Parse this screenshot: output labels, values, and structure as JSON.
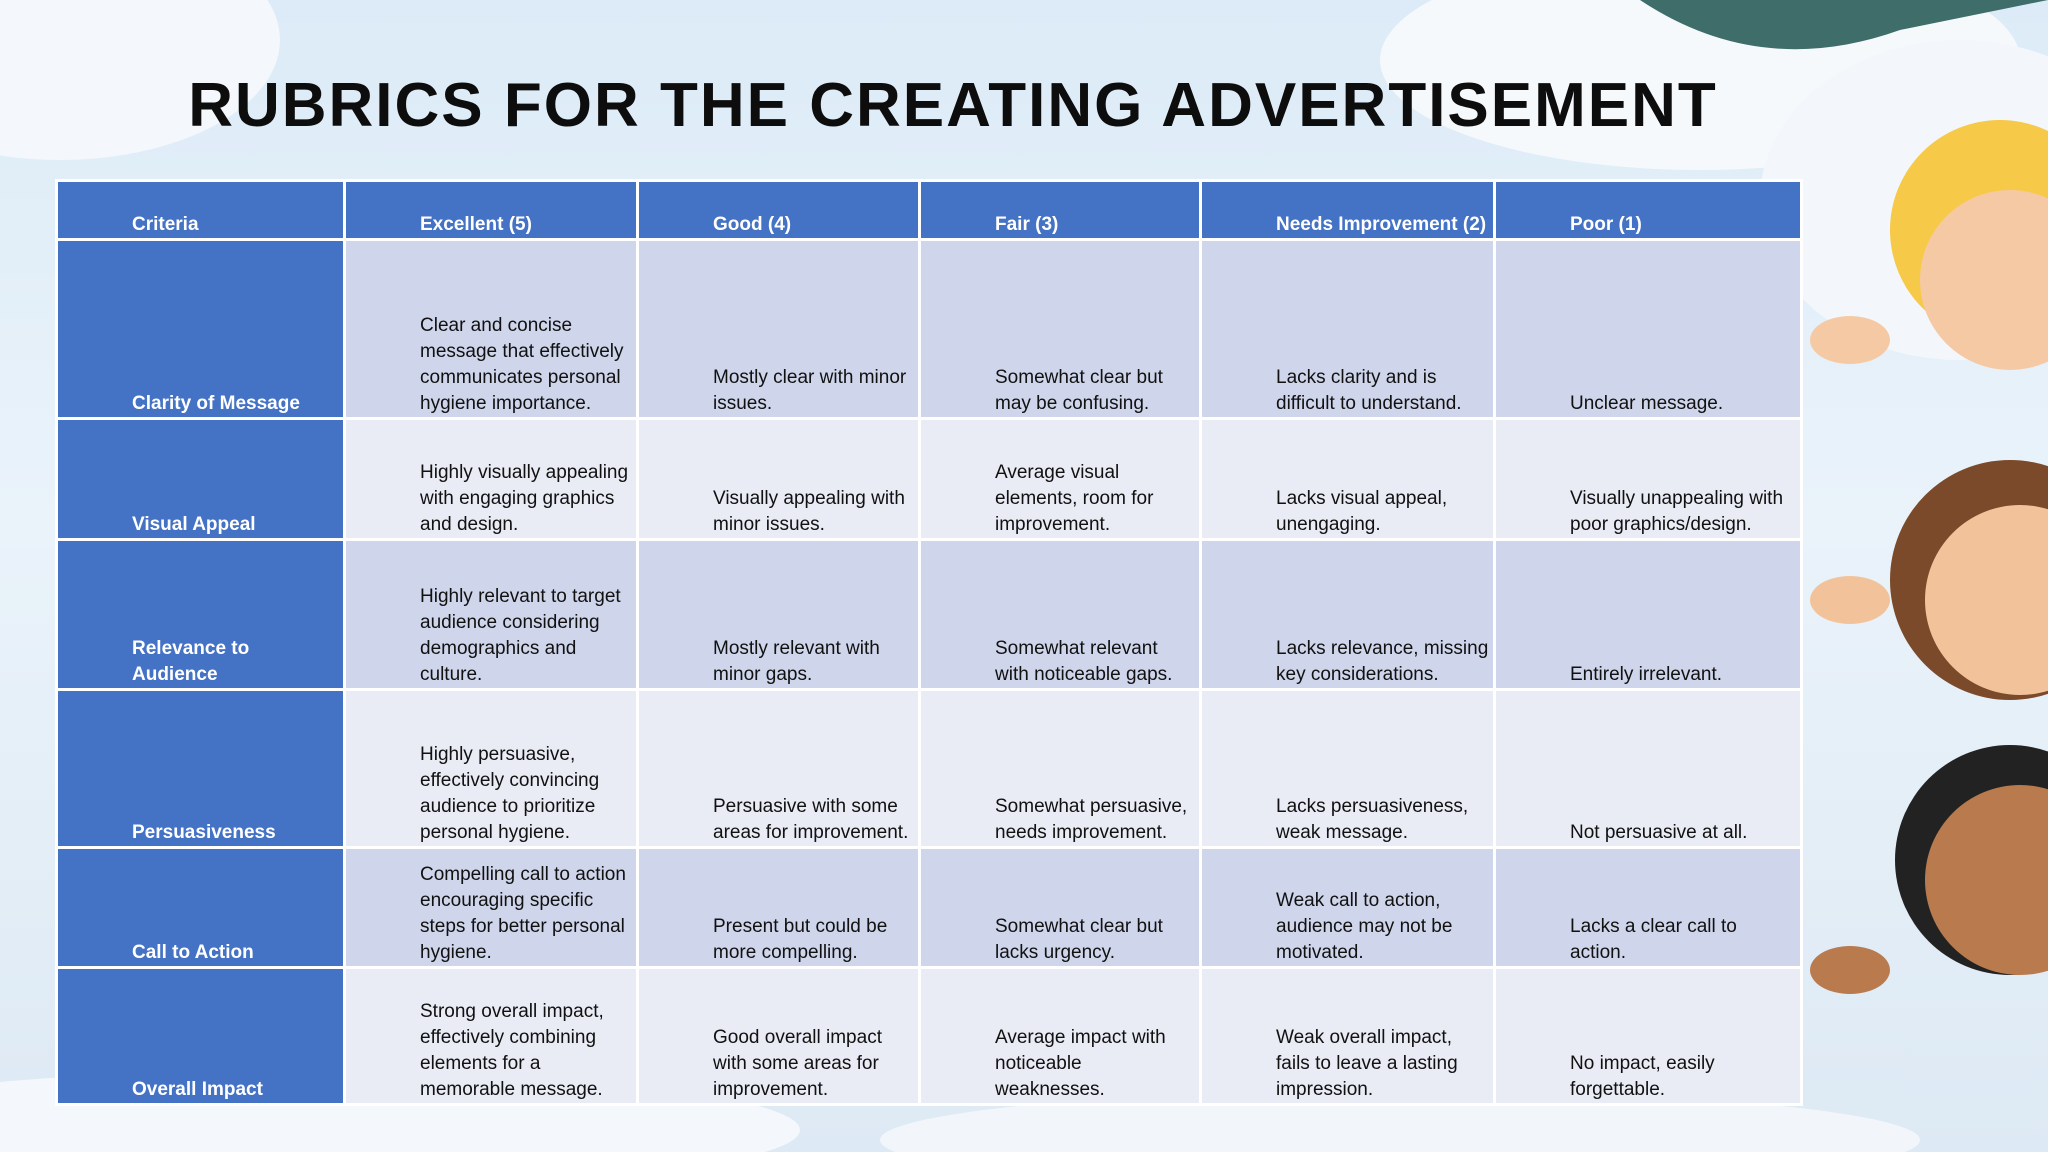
{
  "title": "RUBRICS FOR THE CREATING ADVERTISEMENT",
  "table": {
    "headers": [
      "Criteria",
      "Excellent (5)",
      "Good (4)",
      "Fair (3)",
      "Needs Improvement (2)",
      "Poor (1)"
    ],
    "rows": [
      [
        "Clarity of Message",
        "Clear and concise message that effectively communicates personal hygiene importance.",
        "Mostly clear with minor issues.",
        "Somewhat clear but may be confusing.",
        "Lacks clarity and is difficult to understand.",
        "Unclear message."
      ],
      [
        "Visual Appeal",
        "Highly visually appealing with engaging graphics and design.",
        "Visually appealing with minor issues.",
        "Average visual elements, room for improvement.",
        "Lacks visual appeal, unengaging.",
        "Visually unappealing with poor graphics/design."
      ],
      [
        "Relevance to Audience",
        "Highly relevant to target audience considering demographics and culture.",
        "Mostly relevant with minor gaps.",
        "Somewhat relevant with noticeable gaps.",
        "Lacks relevance, missing key considerations.",
        "Entirely irrelevant."
      ],
      [
        "Persuasiveness",
        "Highly persuasive, effectively convincing audience to prioritize personal hygiene.",
        "Persuasive with some areas for improvement.",
        "Somewhat persuasive, needs improvement.",
        "Lacks persuasiveness, weak message.",
        "Not persuasive at all."
      ],
      [
        "Call to Action",
        "Compelling call to action encouraging specific steps for better personal hygiene.",
        "Present but could be more compelling.",
        "Somewhat clear but lacks urgency.",
        "Weak call to action, audience may not be motivated.",
        "Lacks a clear call to action."
      ],
      [
        "Overall Impact",
        "Strong overall impact, effectively combining elements for a memorable message.",
        "Good overall impact with some areas for improvement.",
        "Average impact with noticeable weaknesses.",
        "Weak overall impact, fails to leave a lasting impression.",
        "No impact, easily forgettable."
      ]
    ]
  }
}
